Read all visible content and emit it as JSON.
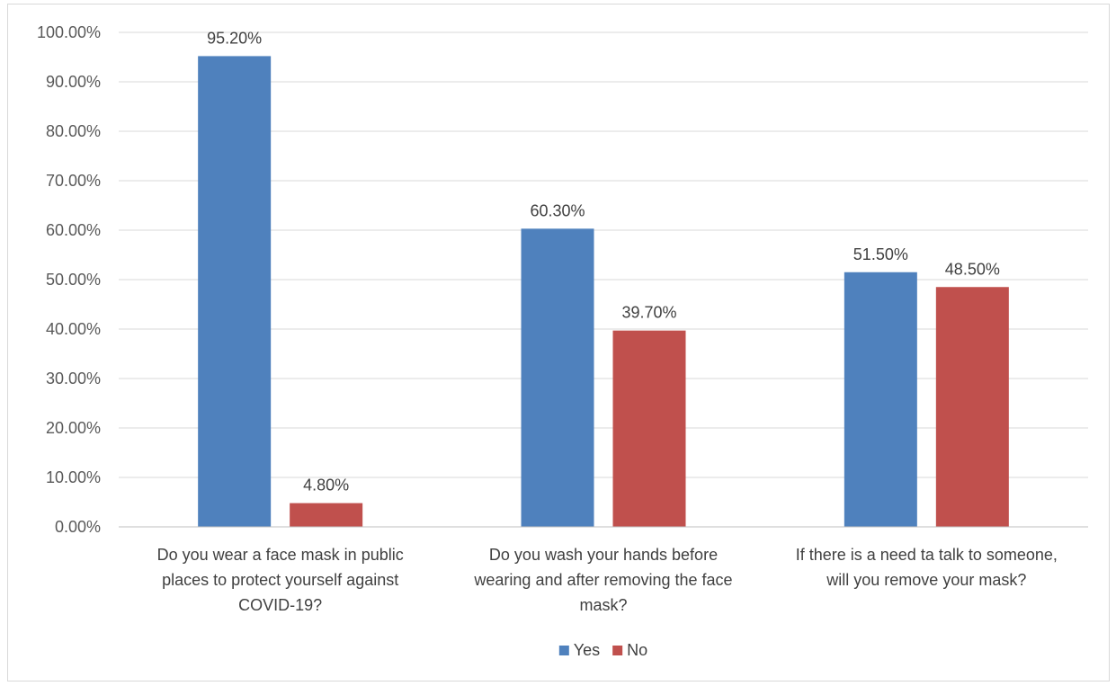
{
  "chart_data": {
    "type": "bar",
    "title": "",
    "xlabel": "",
    "ylabel": "",
    "ylim": [
      0,
      100
    ],
    "yticks": [
      "0.00%",
      "10.00%",
      "20.00%",
      "30.00%",
      "40.00%",
      "50.00%",
      "60.00%",
      "70.00%",
      "80.00%",
      "90.00%",
      "100.00%"
    ],
    "categories": [
      [
        "Do you wear a face mask in public",
        "places to protect yourself against",
        "COVID-19?"
      ],
      [
        "Do you wash your hands before",
        "wearing and after removing the face",
        "mask?"
      ],
      [
        "If there is a need ta talk to someone,",
        "will you remove your mask?"
      ]
    ],
    "series": [
      {
        "name": "Yes",
        "color": "#4f81bd",
        "values": [
          95.2,
          60.3,
          51.5
        ],
        "labels": [
          "95.20%",
          "60.30%",
          "51.50%"
        ]
      },
      {
        "name": "No",
        "color": "#c0504d",
        "values": [
          4.8,
          39.7,
          48.5
        ],
        "labels": [
          "4.80%",
          "39.70%",
          "48.50%"
        ]
      }
    ],
    "grid": true,
    "legend": "bottom"
  }
}
